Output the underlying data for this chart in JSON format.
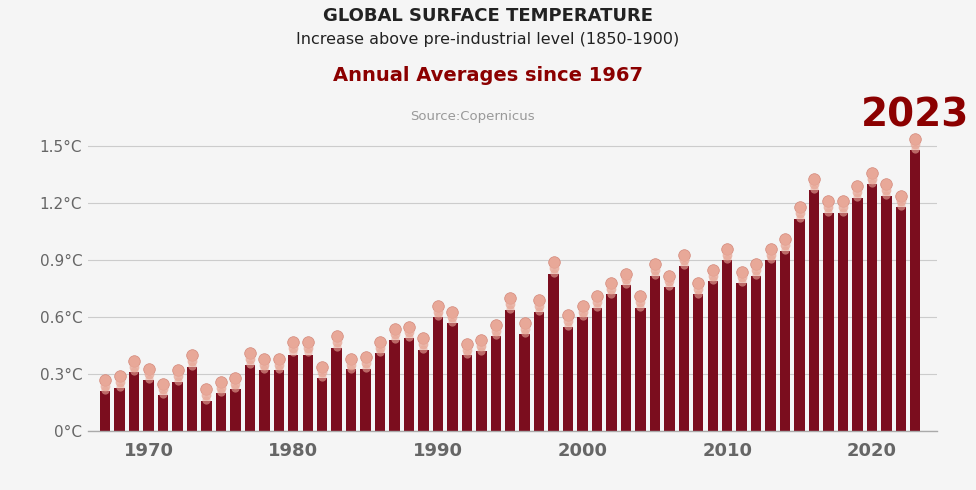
{
  "title_line1": "GLOBAL SURFACE TEMPERATURE",
  "title_line2": "Increase above pre-industrial level (1850-1900)",
  "subtitle": "Annual Averages since 1967",
  "source": "Source:Copernicus",
  "annotation_2023": "2023",
  "bar_color": "#7B0D1E",
  "dot_color": "#E8A898",
  "dot_edge_color": "#D4887A",
  "background_color": "#f5f5f5",
  "title_color": "#222222",
  "subtitle_color": "#8B0000",
  "source_color": "#999999",
  "axis_label_color": "#666666",
  "annotation_color": "#8B0000",
  "years": [
    1967,
    1968,
    1969,
    1970,
    1971,
    1972,
    1973,
    1974,
    1975,
    1976,
    1977,
    1978,
    1979,
    1980,
    1981,
    1982,
    1983,
    1984,
    1985,
    1986,
    1987,
    1988,
    1989,
    1990,
    1991,
    1992,
    1993,
    1994,
    1995,
    1996,
    1997,
    1998,
    1999,
    2000,
    2001,
    2002,
    2003,
    2004,
    2005,
    2006,
    2007,
    2008,
    2009,
    2010,
    2011,
    2012,
    2013,
    2014,
    2015,
    2016,
    2017,
    2018,
    2019,
    2020,
    2021,
    2022,
    2023
  ],
  "values": [
    0.21,
    0.23,
    0.31,
    0.27,
    0.19,
    0.26,
    0.34,
    0.16,
    0.2,
    0.22,
    0.35,
    0.32,
    0.32,
    0.4,
    0.4,
    0.28,
    0.44,
    0.33,
    0.33,
    0.41,
    0.48,
    0.49,
    0.43,
    0.6,
    0.57,
    0.4,
    0.42,
    0.5,
    0.64,
    0.51,
    0.63,
    0.83,
    0.55,
    0.6,
    0.65,
    0.72,
    0.77,
    0.65,
    0.82,
    0.76,
    0.87,
    0.72,
    0.79,
    0.9,
    0.78,
    0.82,
    0.9,
    0.95,
    1.12,
    1.27,
    1.15,
    1.15,
    1.23,
    1.3,
    1.24,
    1.18,
    1.48
  ],
  "dot_values": [
    0.27,
    0.29,
    0.37,
    0.33,
    0.25,
    0.32,
    0.4,
    0.22,
    0.26,
    0.28,
    0.41,
    0.38,
    0.38,
    0.47,
    0.47,
    0.34,
    0.5,
    0.38,
    0.39,
    0.47,
    0.54,
    0.55,
    0.49,
    0.66,
    0.63,
    0.46,
    0.48,
    0.56,
    0.7,
    0.57,
    0.69,
    0.89,
    0.61,
    0.66,
    0.71,
    0.78,
    0.83,
    0.71,
    0.88,
    0.82,
    0.93,
    0.78,
    0.85,
    0.96,
    0.84,
    0.88,
    0.96,
    1.01,
    1.18,
    1.33,
    1.21,
    1.21,
    1.29,
    1.36,
    1.3,
    1.24,
    1.54
  ],
  "ylim": [
    0,
    1.6
  ],
  "yticks": [
    0,
    0.3,
    0.6,
    0.9,
    1.2,
    1.5
  ],
  "ytick_labels": [
    "0°C",
    "0.3°C",
    "0.6°C",
    "0.9°C",
    "1.2°C",
    "1.5°C"
  ],
  "xtick_years": [
    1970,
    1980,
    1990,
    2000,
    2010,
    2020
  ],
  "grid_color": "#cccccc",
  "spine_color": "#aaaaaa"
}
